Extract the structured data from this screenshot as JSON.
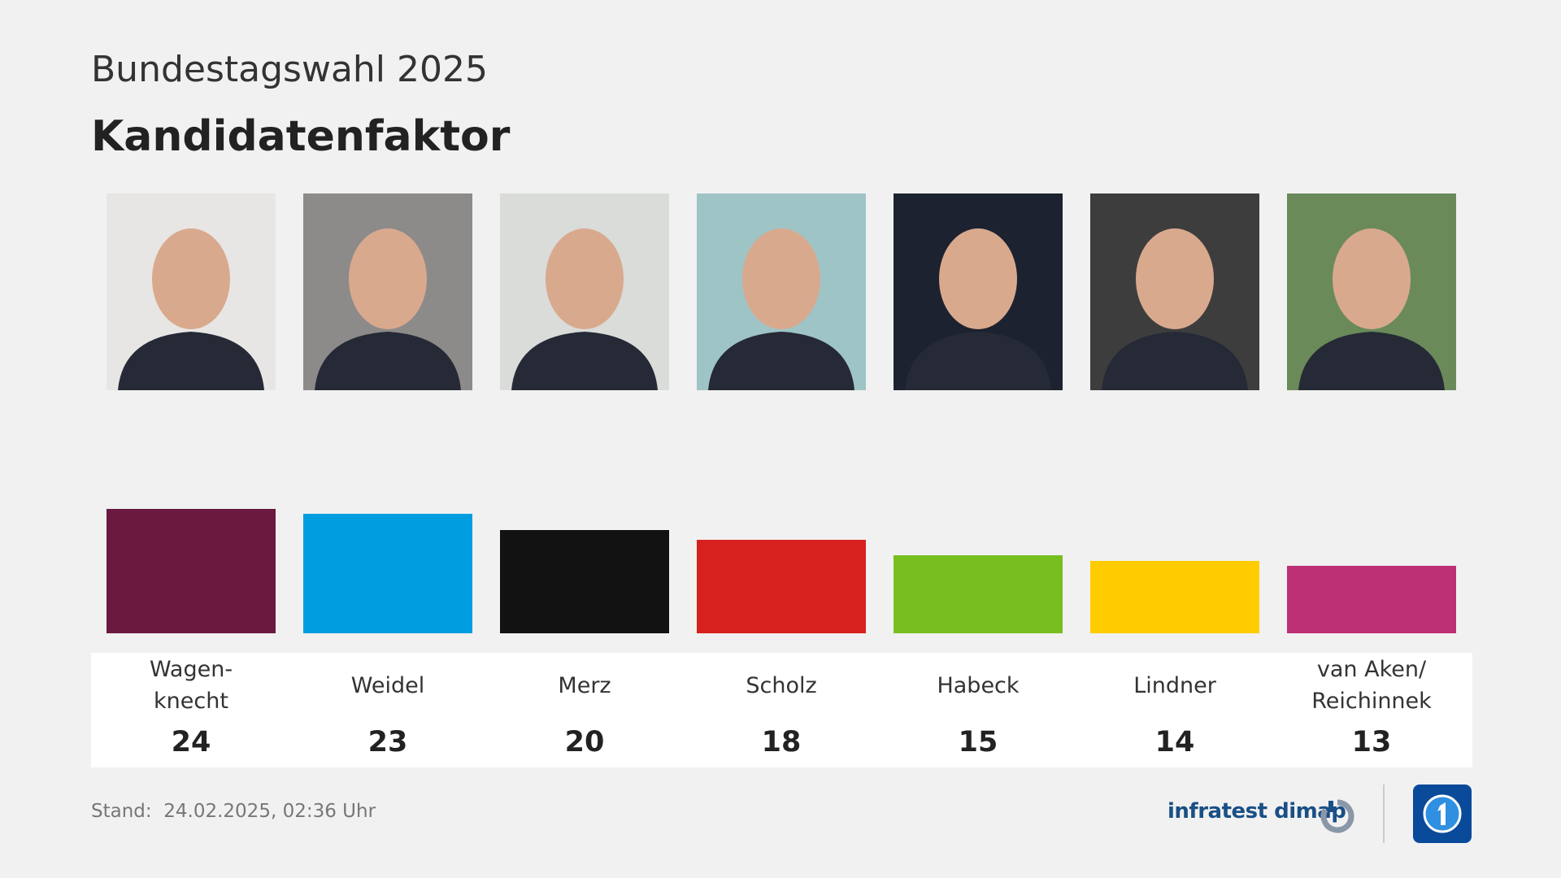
{
  "chart_data": {
    "type": "bar",
    "subtitle": "Bundestagswahl 2025",
    "title": "Kandidatenfaktor",
    "categories": [
      "Wagen-\nknecht",
      "Weidel",
      "Merz",
      "Scholz",
      "Habeck",
      "Lindner",
      "van Aken/\nReichinnek"
    ],
    "values": [
      24,
      23,
      20,
      18,
      15,
      14,
      13
    ],
    "colors": [
      "#6a1a3f",
      "#009ee0",
      "#121212",
      "#d7211e",
      "#78be1f",
      "#ffcc00",
      "#be3075"
    ],
    "note": "Stand:  24.02.2025, 02:36 Uhr",
    "source": "infratest dimap"
  }
}
